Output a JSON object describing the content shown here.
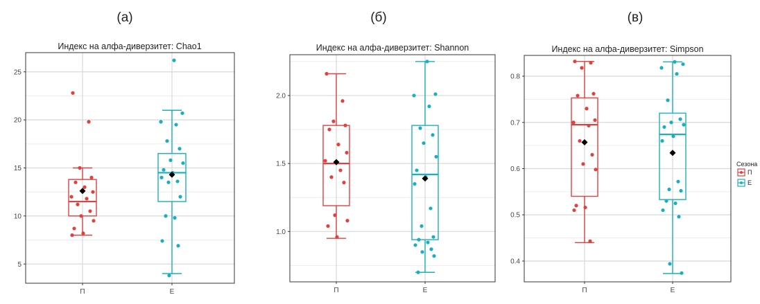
{
  "panel_labels": [
    "(а)",
    "(б)",
    "(в)"
  ],
  "legend": {
    "title": "Сезона",
    "items": [
      {
        "label": "П",
        "color": "#e0403e"
      },
      {
        "label": "Е",
        "color": "#1aafc0"
      }
    ]
  },
  "chart_data": [
    {
      "type": "boxplot",
      "title": "Индекс на алфа-диверзитет: Chao1",
      "categories": [
        "П",
        "Е"
      ],
      "colors": [
        "#e0403e",
        "#1aafc0"
      ],
      "ylim": [
        3,
        27
      ],
      "yticks": [
        5,
        10,
        15,
        20,
        25
      ],
      "yticklabels": [
        "5",
        "10",
        "15",
        "20",
        "25"
      ],
      "grid": true,
      "boxes": [
        {
          "name": "П",
          "whisker_low": 8.0,
          "q1": 10.0,
          "median": 11.5,
          "q3": 13.8,
          "whisker_high": 15.0,
          "mean": 12.6,
          "points": [
            22.8,
            19.8,
            15.0,
            14.0,
            13.5,
            13.0,
            12.5,
            12.0,
            11.8,
            11.2,
            10.5,
            10.0,
            9.5,
            8.7,
            8.2,
            8.0
          ]
        },
        {
          "name": "Е",
          "whisker_low": 4.0,
          "q1": 11.5,
          "median": 14.5,
          "q3": 16.5,
          "whisker_high": 21.0,
          "mean": 14.3,
          "points": [
            26.2,
            20.7,
            19.8,
            19.5,
            17.8,
            17.0,
            15.8,
            15.5,
            14.8,
            14.5,
            14.0,
            13.6,
            13.5,
            12.0,
            10.0,
            9.8,
            7.4,
            6.9,
            3.8
          ]
        }
      ]
    },
    {
      "type": "boxplot",
      "title": "Индекс на алфа-диверзитет: Shannon",
      "categories": [
        "П",
        "Е"
      ],
      "colors": [
        "#e0403e",
        "#1aafc0"
      ],
      "ylim": [
        0.63,
        2.3
      ],
      "yticks": [
        1.0,
        1.5,
        2.0
      ],
      "yticklabels": [
        "1.0",
        "1.5",
        "2.0"
      ],
      "grid": true,
      "boxes": [
        {
          "name": "П",
          "whisker_low": 0.95,
          "q1": 1.19,
          "median": 1.5,
          "q3": 1.78,
          "whisker_high": 2.16,
          "mean": 1.51,
          "points": [
            2.16,
            1.96,
            1.81,
            1.78,
            1.75,
            1.64,
            1.58,
            1.52,
            1.45,
            1.4,
            1.36,
            1.12,
            1.08,
            1.04,
            0.96
          ]
        },
        {
          "name": "Е",
          "whisker_low": 0.7,
          "q1": 0.94,
          "median": 1.42,
          "q3": 1.78,
          "whisker_high": 2.25,
          "mean": 1.39,
          "points": [
            2.25,
            2.01,
            2.0,
            1.92,
            1.76,
            1.71,
            1.65,
            1.55,
            1.45,
            1.4,
            1.35,
            1.17,
            1.04,
            0.96,
            0.94,
            0.92,
            0.9,
            0.87,
            0.85,
            0.82,
            0.7
          ]
        }
      ]
    },
    {
      "type": "boxplot",
      "title": "Индекс на алфа-диверзитет: Simpson",
      "categories": [
        "П",
        "Е"
      ],
      "colors": [
        "#e0403e",
        "#1aafc0"
      ],
      "ylim": [
        0.355,
        0.845
      ],
      "yticks": [
        0.4,
        0.5,
        0.6,
        0.7,
        0.8
      ],
      "yticklabels": [
        "0.4",
        "0.5",
        "0.6",
        "0.7",
        "0.8"
      ],
      "grid": true,
      "boxes": [
        {
          "name": "П",
          "whisker_low": 0.44,
          "q1": 0.54,
          "median": 0.695,
          "q3": 0.753,
          "whisker_high": 0.832,
          "mean": 0.657,
          "points": [
            0.832,
            0.829,
            0.818,
            0.762,
            0.758,
            0.73,
            0.705,
            0.7,
            0.693,
            0.66,
            0.63,
            0.61,
            0.598,
            0.52,
            0.516,
            0.51,
            0.443
          ]
        },
        {
          "name": "Е",
          "whisker_low": 0.373,
          "q1": 0.533,
          "median": 0.674,
          "q3": 0.72,
          "whisker_high": 0.831,
          "mean": 0.634,
          "points": [
            0.831,
            0.826,
            0.818,
            0.805,
            0.748,
            0.707,
            0.7,
            0.695,
            0.69,
            0.67,
            0.66,
            0.572,
            0.555,
            0.552,
            0.53,
            0.525,
            0.51,
            0.496,
            0.394,
            0.374
          ]
        }
      ]
    }
  ]
}
